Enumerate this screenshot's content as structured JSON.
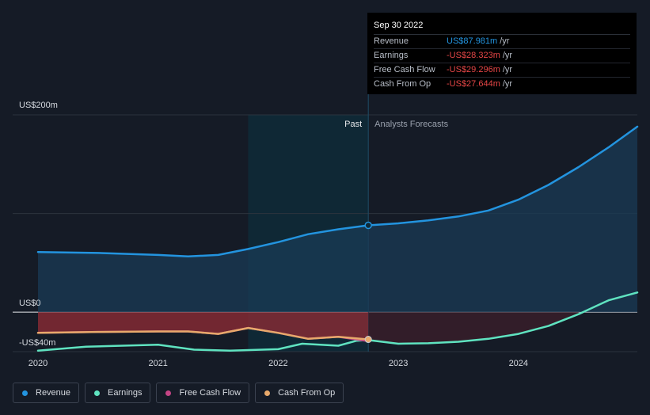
{
  "tooltip": {
    "date": "Sep 30 2022",
    "rows": [
      {
        "label": "Revenue",
        "value": "US$87.981m",
        "unit": "/yr",
        "color": "#2394df"
      },
      {
        "label": "Earnings",
        "value": "-US$28.323m",
        "unit": "/yr",
        "color": "#e64646"
      },
      {
        "label": "Free Cash Flow",
        "value": "-US$29.296m",
        "unit": "/yr",
        "color": "#e64646"
      },
      {
        "label": "Cash From Op",
        "value": "-US$27.644m",
        "unit": "/yr",
        "color": "#e64646"
      }
    ]
  },
  "legend": [
    {
      "label": "Revenue",
      "color": "#2394df"
    },
    {
      "label": "Earnings",
      "color": "#5fe3c0"
    },
    {
      "label": "Free Cash Flow",
      "color": "#c44585"
    },
    {
      "label": "Cash From Op",
      "color": "#e8a96b"
    }
  ],
  "chart_data": {
    "type": "line",
    "title": "",
    "y_axis_labels": [
      "US$200m",
      "US$0",
      "-US$40m"
    ],
    "ylim": [
      -40,
      200
    ],
    "xlim": [
      2020,
      2024.99
    ],
    "x_ticks": [
      "2020",
      "2021",
      "2022",
      "2023",
      "2024"
    ],
    "past_label": "Past",
    "forecast_label": "Analysts Forecasts",
    "divider_x": 2022.75,
    "shaded_start_x": 2021.75,
    "series": [
      {
        "name": "Revenue",
        "color": "#2394df",
        "x": [
          2020,
          2020.5,
          2021,
          2021.25,
          2021.5,
          2021.75,
          2022,
          2022.25,
          2022.5,
          2022.75,
          2023,
          2023.25,
          2023.5,
          2023.75,
          2024,
          2024.25,
          2024.5,
          2024.75,
          2024.99
        ],
        "y": [
          61,
          60,
          58,
          56.5,
          58,
          64,
          71,
          79,
          84,
          88,
          90,
          93,
          97,
          103,
          114,
          129,
          147,
          167,
          188
        ]
      },
      {
        "name": "Earnings",
        "color": "#5fe3c0",
        "x": [
          2020,
          2020.4,
          2021,
          2021.3,
          2021.6,
          2022,
          2022.2,
          2022.5,
          2022.65,
          2022.75,
          2023,
          2023.25,
          2023.5,
          2023.75,
          2024,
          2024.25,
          2024.5,
          2024.75,
          2024.99
        ],
        "y": [
          -39,
          -35,
          -33,
          -38,
          -39,
          -37.5,
          -32,
          -34,
          -29,
          -28.3,
          -32,
          -31.5,
          -30,
          -27,
          -22,
          -14,
          -2,
          12,
          20
        ]
      },
      {
        "name": "Free Cash Flow",
        "color": "#c44585",
        "x": [
          2020,
          2020.5,
          2021,
          2021.25,
          2021.5,
          2021.75,
          2022,
          2022.25,
          2022.5,
          2022.75
        ],
        "y": [
          -21,
          -20,
          -19.5,
          -19.5,
          -22,
          -16,
          -21,
          -27,
          -25,
          -29.3
        ]
      },
      {
        "name": "Cash From Op",
        "color": "#e8a96b",
        "x": [
          2020,
          2020.5,
          2021,
          2021.25,
          2021.5,
          2021.75,
          2022,
          2022.25,
          2022.5,
          2022.75
        ],
        "y": [
          -21,
          -20,
          -19.5,
          -19.5,
          -22,
          -16,
          -21,
          -27,
          -25,
          -27.6
        ]
      }
    ]
  }
}
